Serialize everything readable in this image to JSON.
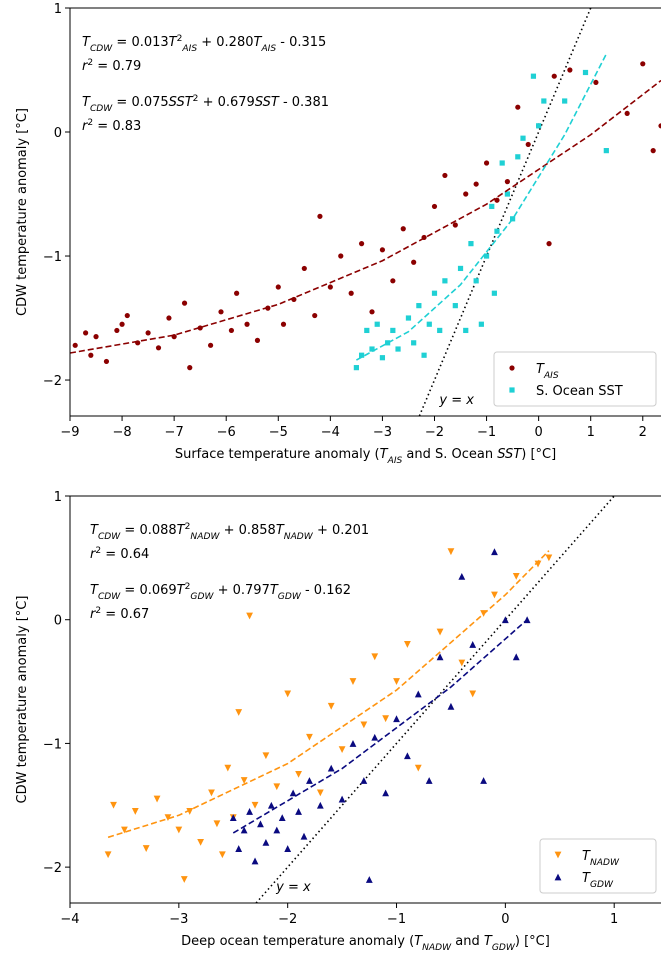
{
  "chart_data": [
    {
      "type": "scatter",
      "xlabel": [
        {
          "t": "Surface temperature anomaly ("
        },
        {
          "t": "T",
          "s": "i"
        },
        {
          "t": "AIS",
          "s": "sub"
        },
        {
          "t": " and S. Ocean "
        },
        {
          "t": "SST",
          "s": "i"
        },
        {
          "t": ") [°C]"
        }
      ],
      "ylabel": "CDW temperature anomaly [°C]",
      "xlim": [
        -9,
        2.35
      ],
      "ylim": [
        -2.29,
        1
      ],
      "xticks": [
        {
          "value": -9,
          "label": "−9"
        },
        {
          "value": -8,
          "label": "−8"
        },
        {
          "value": -7,
          "label": "−7"
        },
        {
          "value": -6,
          "label": "−6"
        },
        {
          "value": -5,
          "label": "−5"
        },
        {
          "value": -4,
          "label": "−4"
        },
        {
          "value": -3,
          "label": "−3"
        },
        {
          "value": -2,
          "label": "−2"
        },
        {
          "value": -1,
          "label": "−1"
        },
        0,
        1,
        2
      ],
      "yticks": [
        {
          "value": -2,
          "label": "−2"
        },
        {
          "value": -1,
          "label": "−1"
        },
        0,
        1
      ],
      "legend": "lower right",
      "series": [
        {
          "name": [
            {
              "t": "T",
              "s": "i"
            },
            {
              "t": "AIS",
              "s": "sub"
            }
          ],
          "color": "#8b0000",
          "marker": "o",
          "x": [
            -8.9,
            -8.7,
            -8.6,
            -8.5,
            -8.3,
            -8.1,
            -8.0,
            -7.9,
            -7.7,
            -7.5,
            -7.3,
            -7.1,
            -7.0,
            -6.8,
            -6.7,
            -6.5,
            -6.3,
            -6.1,
            -5.9,
            -5.8,
            -5.6,
            -5.4,
            -5.2,
            -5.0,
            -4.9,
            -4.7,
            -4.5,
            -4.3,
            -4.2,
            -4.0,
            -3.8,
            -3.6,
            -3.4,
            -3.2,
            -3.0,
            -2.8,
            -2.6,
            -2.4,
            -2.2,
            -2.0,
            -1.8,
            -1.6,
            -1.4,
            -1.2,
            -1.0,
            -0.8,
            -0.6,
            -0.4,
            -0.2,
            0.0,
            0.2,
            0.3,
            0.6,
            1.1,
            1.7,
            2.0,
            2.2,
            2.35
          ],
          "values": [
            -1.72,
            -1.62,
            -1.8,
            -1.65,
            -1.85,
            -1.6,
            -1.55,
            -1.48,
            -1.7,
            -1.62,
            -1.74,
            -1.5,
            -1.65,
            -1.38,
            -1.9,
            -1.58,
            -1.72,
            -1.45,
            -1.6,
            -1.3,
            -1.55,
            -1.68,
            -1.42,
            -1.25,
            -1.55,
            -1.35,
            -1.1,
            -1.48,
            -0.68,
            -1.25,
            -1.0,
            -1.3,
            -0.9,
            -1.45,
            -0.95,
            -1.2,
            -0.78,
            -1.05,
            -0.85,
            -0.6,
            -0.35,
            -0.75,
            -0.5,
            -0.42,
            -0.25,
            -0.55,
            -0.4,
            0.2,
            -0.1,
            0.05,
            -0.9,
            0.45,
            0.5,
            0.4,
            0.15,
            0.55,
            -0.15,
            0.05
          ]
        },
        {
          "name": [
            {
              "t": "S. Ocean SST"
            }
          ],
          "color": "#1fd0d4",
          "marker": "s",
          "x": [
            -3.5,
            -3.4,
            -3.3,
            -3.2,
            -3.1,
            -3.0,
            -2.9,
            -2.8,
            -2.7,
            -2.5,
            -2.4,
            -2.3,
            -2.2,
            -2.1,
            -2.0,
            -1.9,
            -1.8,
            -1.6,
            -1.5,
            -1.4,
            -1.3,
            -1.2,
            -1.1,
            -1.0,
            -0.9,
            -0.85,
            -0.8,
            -0.7,
            -0.6,
            -0.5,
            -0.4,
            -0.3,
            -0.1,
            0.0,
            0.1,
            0.5,
            0.9,
            1.3
          ],
          "values": [
            -1.9,
            -1.8,
            -1.6,
            -1.75,
            -1.55,
            -1.82,
            -1.7,
            -1.6,
            -1.75,
            -1.5,
            -1.7,
            -1.4,
            -1.8,
            -1.55,
            -1.3,
            -1.6,
            -1.2,
            -1.4,
            -1.1,
            -1.6,
            -0.9,
            -1.2,
            -1.55,
            -1.0,
            -0.6,
            -1.3,
            -0.8,
            -0.25,
            -0.5,
            -0.7,
            -0.2,
            -0.05,
            0.45,
            0.05,
            0.25,
            0.25,
            0.48,
            -0.15
          ]
        }
      ],
      "fits": [
        {
          "color": "#8b0000",
          "x": [
            -9,
            -7,
            -5,
            -3,
            -1,
            1,
            2.35
          ],
          "values": [
            -1.782,
            -1.638,
            -1.39,
            -1.038,
            -0.582,
            -0.022,
            0.415
          ]
        },
        {
          "color": "#1fd0d4",
          "x": [
            -3.5,
            -2.5,
            -1.5,
            -0.5,
            0.5,
            1.3
          ],
          "values": [
            -1.839,
            -1.61,
            -1.231,
            -0.702,
            -0.022,
            0.629
          ]
        }
      ],
      "ref_line": {
        "x": [
          -2.29,
          1
        ],
        "values": [
          -2.29,
          1
        ],
        "label": [
          {
            "t": "y",
            "s": "i"
          },
          {
            "t": " = "
          },
          {
            "t": "x",
            "s": "i"
          }
        ]
      },
      "annotations": [
        {
          "color": "#8b0000",
          "parts": [
            {
              "t": "T",
              "s": "i"
            },
            {
              "t": "CDW",
              "s": "sub"
            },
            {
              "t": " = 0.013"
            },
            {
              "t": "T",
              "s": "i"
            },
            {
              "t": "2",
              "s": "sup"
            },
            {
              "t": "AIS",
              "s": "sub"
            },
            {
              "t": " + 0.280"
            },
            {
              "t": "T",
              "s": "i"
            },
            {
              "t": "AIS",
              "s": "sub"
            },
            {
              "t": " - 0.315"
            }
          ]
        },
        {
          "color": "#8b0000",
          "parts": [
            {
              "t": "r",
              "s": "i"
            },
            {
              "t": "2",
              "s": "sup"
            },
            {
              "t": " = 0.79"
            }
          ]
        },
        {
          "color": "#1fd0d4",
          "parts": [
            {
              "t": "T",
              "s": "i"
            },
            {
              "t": "CDW",
              "s": "sub"
            },
            {
              "t": " = 0.075"
            },
            {
              "t": "SST",
              "s": "i"
            },
            {
              "t": "2",
              "s": "sup"
            },
            {
              "t": " + 0.679"
            },
            {
              "t": "SST",
              "s": "i"
            },
            {
              "t": " - 0.381"
            }
          ]
        },
        {
          "color": "#1fd0d4",
          "parts": [
            {
              "t": "r",
              "s": "i"
            },
            {
              "t": "2",
              "s": "sup"
            },
            {
              "t": " = 0.83"
            }
          ]
        }
      ]
    },
    {
      "type": "scatter",
      "xlabel": [
        {
          "t": "Deep ocean temperature anomaly ("
        },
        {
          "t": "T",
          "s": "i"
        },
        {
          "t": "NADW",
          "s": "sub"
        },
        {
          "t": " and "
        },
        {
          "t": "T",
          "s": "i"
        },
        {
          "t": "GDW",
          "s": "sub"
        },
        {
          "t": ") [°C]"
        }
      ],
      "ylabel": "CDW temperature anomaly [°C]",
      "xlim": [
        -4,
        1.43
      ],
      "ylim": [
        -2.29,
        1
      ],
      "xticks": [
        {
          "value": -4,
          "label": "−4"
        },
        {
          "value": -3,
          "label": "−3"
        },
        {
          "value": -2,
          "label": "−2"
        },
        {
          "value": -1,
          "label": "−1"
        },
        0,
        1
      ],
      "yticks": [
        {
          "value": -2,
          "label": "−2"
        },
        {
          "value": -1,
          "label": "−1"
        },
        0,
        1
      ],
      "legend": "lower right",
      "series": [
        {
          "name": [
            {
              "t": "T",
              "s": "i"
            },
            {
              "t": "NADW",
              "s": "sub"
            }
          ],
          "color": "#ff9410",
          "marker": "v",
          "x": [
            -3.65,
            -3.6,
            -3.5,
            -3.4,
            -3.3,
            -3.2,
            -3.1,
            -3.0,
            -2.95,
            -2.9,
            -2.8,
            -2.7,
            -2.65,
            -2.6,
            -2.55,
            -2.5,
            -2.45,
            -2.4,
            -2.35,
            -2.3,
            -2.2,
            -2.1,
            -2.0,
            -1.9,
            -1.8,
            -1.7,
            -1.6,
            -1.5,
            -1.4,
            -1.3,
            -1.2,
            -1.1,
            -1.0,
            -0.9,
            -0.8,
            -0.6,
            -0.5,
            -0.4,
            -0.3,
            -0.2,
            -0.1,
            0.1,
            0.3,
            0.4
          ],
          "values": [
            -1.9,
            -1.5,
            -1.7,
            -1.55,
            -1.85,
            -1.45,
            -1.6,
            -1.7,
            -2.1,
            -1.55,
            -1.8,
            -1.4,
            -1.65,
            -1.9,
            -1.2,
            -1.6,
            -0.75,
            -1.3,
            0.03,
            -1.5,
            -1.1,
            -1.35,
            -0.6,
            -1.25,
            -0.95,
            -1.4,
            -0.7,
            -1.05,
            -0.5,
            -0.85,
            -0.3,
            -0.8,
            -0.5,
            -0.2,
            -1.2,
            -0.1,
            0.55,
            -0.35,
            -0.6,
            0.05,
            0.2,
            0.35,
            0.45,
            0.5
          ]
        },
        {
          "name": [
            {
              "t": "T",
              "s": "i"
            },
            {
              "t": "GDW",
              "s": "sub"
            }
          ],
          "color": "#0a0a80",
          "marker": "^",
          "x": [
            -2.5,
            -2.45,
            -2.4,
            -2.35,
            -2.3,
            -2.25,
            -2.2,
            -2.15,
            -2.1,
            -2.05,
            -2.0,
            -1.95,
            -1.9,
            -1.85,
            -1.8,
            -1.7,
            -1.6,
            -1.5,
            -1.4,
            -1.3,
            -1.25,
            -1.2,
            -1.1,
            -1.0,
            -0.9,
            -0.8,
            -0.7,
            -0.6,
            -0.5,
            -0.4,
            -0.3,
            -0.2,
            -0.1,
            0.0,
            0.1,
            0.2
          ],
          "values": [
            -1.6,
            -1.85,
            -1.7,
            -1.55,
            -1.95,
            -1.65,
            -1.8,
            -1.5,
            -1.7,
            -1.6,
            -1.85,
            -1.4,
            -1.55,
            -1.75,
            -1.3,
            -1.5,
            -1.2,
            -1.45,
            -1.0,
            -1.3,
            -2.1,
            -0.95,
            -1.4,
            -0.8,
            -1.1,
            -0.6,
            -1.3,
            -0.3,
            -0.7,
            0.35,
            -0.2,
            -1.3,
            0.55,
            0.0,
            -0.3,
            0.0
          ]
        }
      ],
      "fits": [
        {
          "color": "#ff9410",
          "x": [
            -3.65,
            -3,
            -2,
            -1,
            0,
            0.4
          ],
          "values": [
            -1.759,
            -1.581,
            -1.163,
            -0.569,
            0.201,
            0.558
          ]
        },
        {
          "color": "#0a0a80",
          "x": [
            -2.5,
            -1.5,
            -0.5,
            0.2
          ],
          "values": [
            -1.724,
            -1.203,
            -0.544,
            0.0
          ]
        }
      ],
      "ref_line": {
        "x": [
          -2.29,
          1
        ],
        "values": [
          -2.29,
          1
        ],
        "label": [
          {
            "t": "y",
            "s": "i"
          },
          {
            "t": " = "
          },
          {
            "t": "x",
            "s": "i"
          }
        ]
      },
      "annotations": [
        {
          "color": "#ff9410",
          "parts": [
            {
              "t": "T",
              "s": "i"
            },
            {
              "t": "CDW",
              "s": "sub"
            },
            {
              "t": " = 0.088"
            },
            {
              "t": "T",
              "s": "i"
            },
            {
              "t": "2",
              "s": "sup"
            },
            {
              "t": "NADW",
              "s": "sub"
            },
            {
              "t": " + 0.858"
            },
            {
              "t": "T",
              "s": "i"
            },
            {
              "t": "NADW",
              "s": "sub"
            },
            {
              "t": " + 0.201"
            }
          ]
        },
        {
          "color": "#ff9410",
          "parts": [
            {
              "t": "r",
              "s": "i"
            },
            {
              "t": "2",
              "s": "sup"
            },
            {
              "t": " = 0.64"
            }
          ]
        },
        {
          "color": "#0a0a80",
          "parts": [
            {
              "t": "T",
              "s": "i"
            },
            {
              "t": "CDW",
              "s": "sub"
            },
            {
              "t": " = 0.069"
            },
            {
              "t": "T",
              "s": "i"
            },
            {
              "t": "2",
              "s": "sup"
            },
            {
              "t": "GDW",
              "s": "sub"
            },
            {
              "t": " + 0.797"
            },
            {
              "t": "T",
              "s": "i"
            },
            {
              "t": "GDW",
              "s": "sub"
            },
            {
              "t": " - 0.162"
            }
          ]
        },
        {
          "color": "#0a0a80",
          "parts": [
            {
              "t": "r",
              "s": "i"
            },
            {
              "t": "2",
              "s": "sup"
            },
            {
              "t": " = 0.67"
            }
          ]
        }
      ]
    }
  ]
}
